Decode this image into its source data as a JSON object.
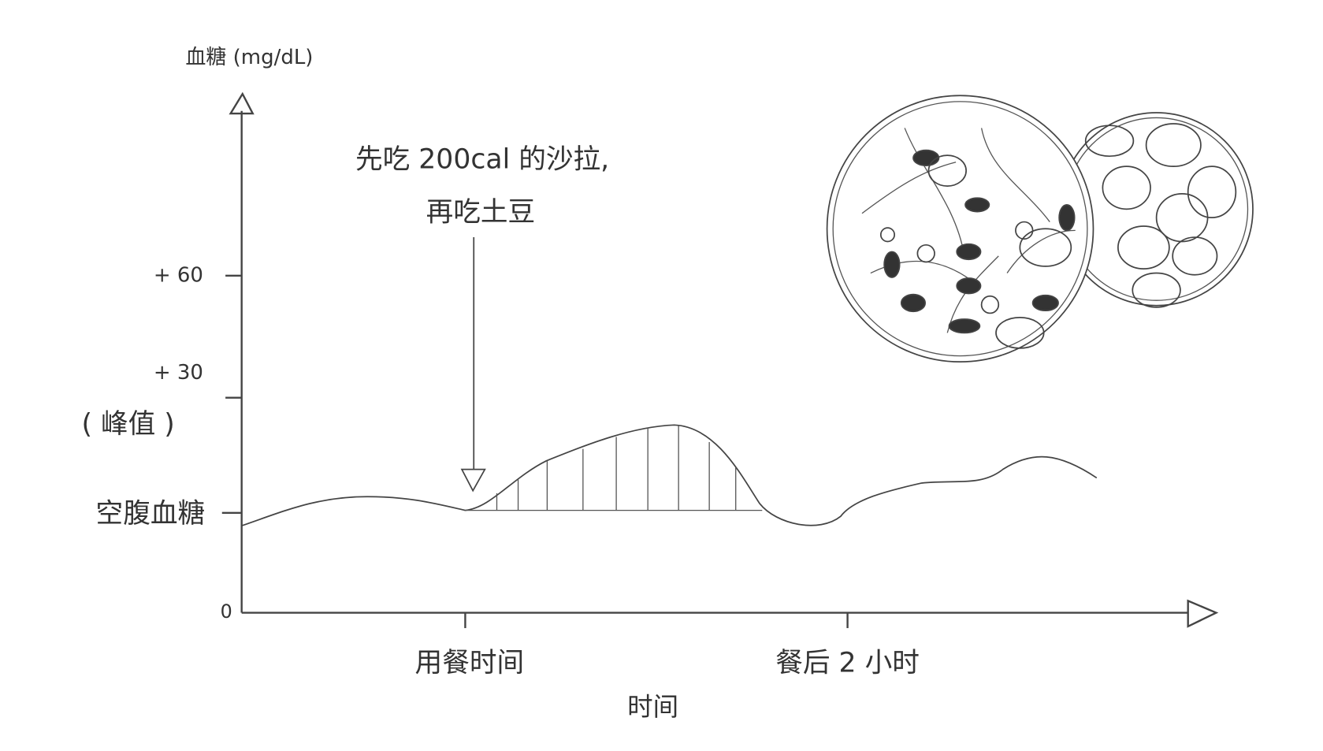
{
  "y_axis": {
    "title": "血糖 (mg/dL)",
    "ticks": [
      "0",
      "空腹血糖",
      "( 峰值 )",
      "+ 30",
      "+ 60"
    ]
  },
  "x_axis": {
    "title": "时间",
    "ticks": [
      "用餐时间",
      "餐后 2 小时"
    ]
  },
  "annotation": {
    "lines": [
      "先吃 200cal 的沙拉,",
      "再吃土豆"
    ]
  }
}
